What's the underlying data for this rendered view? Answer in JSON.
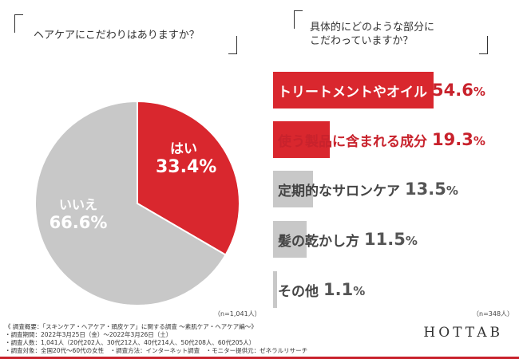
{
  "left_question": "ヘアケアにこだわりはありますか？",
  "right_question_line1": "具体的にどのような部分に",
  "right_question_line2": "こだわっていますか？",
  "chart_data": [
    {
      "type": "pie",
      "categories": [
        "はい",
        "いいえ"
      ],
      "values": [
        33.4,
        66.6
      ],
      "labels": [
        "33.4%",
        "66.6%"
      ],
      "colors": [
        "#d9272e",
        "#c8c8c8"
      ],
      "n": "（n=1,041人）"
    },
    {
      "type": "bar",
      "orientation": "horizontal",
      "categories": [
        "トリートメントやオイル",
        "使う製品に含まれる成分",
        "定期的なサロンケア",
        "髪の乾かし方",
        "その他"
      ],
      "values": [
        54.6,
        19.3,
        13.5,
        11.5,
        1.1
      ],
      "labels": [
        "54.6",
        "19.3",
        "13.5",
        "11.5",
        "1.1"
      ],
      "colors": [
        "#d9272e",
        "#d9272e",
        "#c8c8c8",
        "#c8c8c8",
        "#c8c8c8"
      ],
      "n": "（n=348人）"
    }
  ],
  "notes": [
    "《 調査概要：「スキンケア・ヘアケア・頭皮ケア」に関する調査 ～素肌ケア・ヘアケア編～》",
    "・調査期間：2022年3月25日（金）～2022年3月26日（土）",
    "・調査人数：1,041人（20代202人、30代212人、40代214人、50代208人、60代205人）",
    "・調査対象：全国20代～60代の女性　・調査方法：インターネット調査　・モニター提供元：ゼネラルリサーチ"
  ],
  "logo": "HOTTAB"
}
